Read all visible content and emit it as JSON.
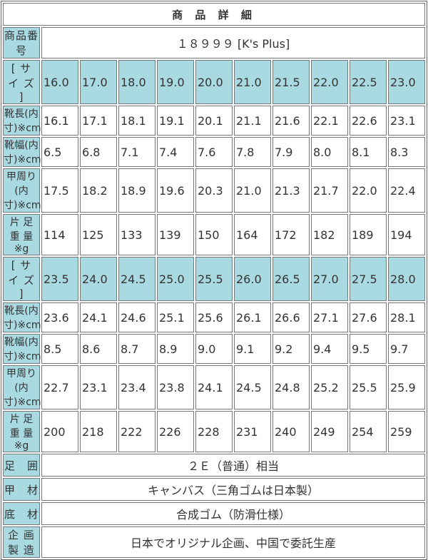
{
  "title": "商 品 詳 細",
  "product_number": {
    "label": "商品番号",
    "value": "１８９９９ [K's Plus]"
  },
  "size_blocks": [
    {
      "size_label": "[ サ イ ズ ]",
      "sizes": [
        "16.0",
        "17.0",
        "18.0",
        "19.0",
        "20.0",
        "21.0",
        "21.5",
        "22.0",
        "22.5",
        "23.0"
      ],
      "rows": [
        {
          "label": "靴長(内寸)※cm",
          "values": [
            "16.1",
            "17.1",
            "18.1",
            "19.1",
            "20.1",
            "21.1",
            "21.6",
            "22.1",
            "22.6",
            "23.1"
          ]
        },
        {
          "label": "靴幅(内寸)※cm",
          "values": [
            "6.5",
            "6.8",
            "7.1",
            "7.4",
            "7.6",
            "7.8",
            "7.9",
            "8.0",
            "8.1",
            "8.3"
          ]
        },
        {
          "label": "甲周り(内寸)※cm",
          "values": [
            "17.5",
            "18.2",
            "18.9",
            "19.6",
            "20.3",
            "21.0",
            "21.3",
            "21.7",
            "22.0",
            "22.4"
          ]
        },
        {
          "label": "片 足 重 量 ※g",
          "values": [
            "114",
            "125",
            "133",
            "139",
            "150",
            "164",
            "172",
            "182",
            "189",
            "194"
          ]
        }
      ]
    },
    {
      "size_label": "[ サ イ ズ ]",
      "sizes": [
        "23.5",
        "24.0",
        "24.5",
        "25.0",
        "25.5",
        "26.0",
        "26.5",
        "27.0",
        "27.5",
        "28.0"
      ],
      "rows": [
        {
          "label": "靴長(内寸)※cm",
          "values": [
            "23.6",
            "24.1",
            "24.6",
            "25.1",
            "25.6",
            "26.1",
            "26.6",
            "27.1",
            "27.6",
            "28.1"
          ]
        },
        {
          "label": "靴幅(内寸)※cm",
          "values": [
            "8.5",
            "8.6",
            "8.7",
            "8.9",
            "9.0",
            "9.1",
            "9.2",
            "9.4",
            "9.5",
            "9.7"
          ]
        },
        {
          "label": "甲周り(内寸)※cm",
          "values": [
            "22.7",
            "23.1",
            "23.4",
            "23.8",
            "24.1",
            "24.5",
            "24.8",
            "25.2",
            "25.5",
            "25.9"
          ]
        },
        {
          "label": "片 足 重 量 ※g",
          "values": [
            "200",
            "218",
            "222",
            "226",
            "228",
            "231",
            "240",
            "249",
            "254",
            "259"
          ]
        }
      ]
    }
  ],
  "details": [
    {
      "label": "足　囲",
      "value": "２Ｅ（普通）相当"
    },
    {
      "label": "甲　材",
      "value": "キャンバス（三角ゴムは日本製）"
    },
    {
      "label": "底　材",
      "value": "合成ゴム（防滑仕様）"
    },
    {
      "label": "企 画 製 造",
      "value": "日本でオリジナル企画、中国で委託生産"
    }
  ],
  "colors": {
    "label_bg": "#a9d9e1",
    "border": "#777777",
    "text": "#333333"
  }
}
